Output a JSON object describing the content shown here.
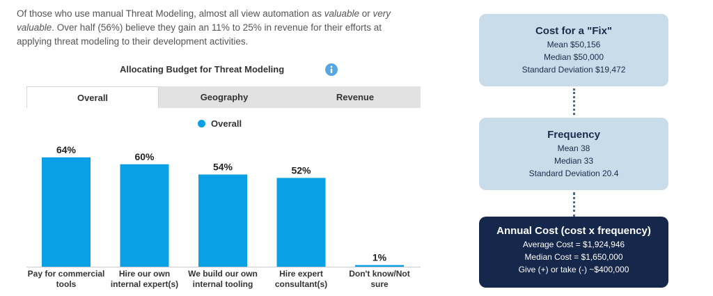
{
  "intro": {
    "t1": "Of those who use manual Threat Modeling, almost all view automation as ",
    "em1": "valuable",
    "t2": " or ",
    "em2": "very valuable",
    "t3": ". Over half (56%) believe they gain an 11% to 25% in revenue for their efforts at applying threat modeling to their development activities."
  },
  "chart_title": "Allocating Budget for Threat Modeling",
  "tabs": [
    "Overall",
    "Geography",
    "Revenue"
  ],
  "legend": {
    "label": "Overall",
    "color": "#0aa0e6"
  },
  "chart_data": {
    "type": "bar",
    "title": "Allocating Budget for Threat Modeling",
    "categories": [
      "Pay for commercial tools",
      "Hire our own internal expert(s)",
      "We build our own internal tooling",
      "Hire expert consultant(s)",
      "Don't know/Not sure"
    ],
    "category_lines": [
      [
        "Pay for commercial",
        "tools"
      ],
      [
        "Hire our own",
        "internal expert(s)"
      ],
      [
        "We build our own",
        "internal tooling"
      ],
      [
        "Hire expert",
        "consultant(s)"
      ],
      [
        "Don't know/Not",
        "sure"
      ]
    ],
    "series": [
      {
        "name": "Overall",
        "values": [
          64,
          60,
          54,
          52,
          1
        ],
        "color": "#0aa0e6"
      }
    ],
    "data_labels": [
      "64%",
      "60%",
      "54%",
      "52%",
      "1%"
    ],
    "ylim": [
      0,
      64
    ],
    "xlabel": "",
    "ylabel": "",
    "grid": false
  },
  "cost_fix": {
    "title": "Cost for a \"Fix\"",
    "lines": [
      "Mean  $50,156",
      "Median  $50,000",
      "Standard Deviation $19,472"
    ]
  },
  "frequency": {
    "title": "Frequency",
    "lines": [
      "Mean 38",
      "Median 33",
      "Standard Deviation 20.4"
    ]
  },
  "annual_cost": {
    "title": "Annual Cost (cost x frequency)",
    "lines": [
      "Average Cost = $1,924,946",
      "Median Cost = $1,650,000",
      "Give (+) or take (-) ~$400,000"
    ]
  }
}
